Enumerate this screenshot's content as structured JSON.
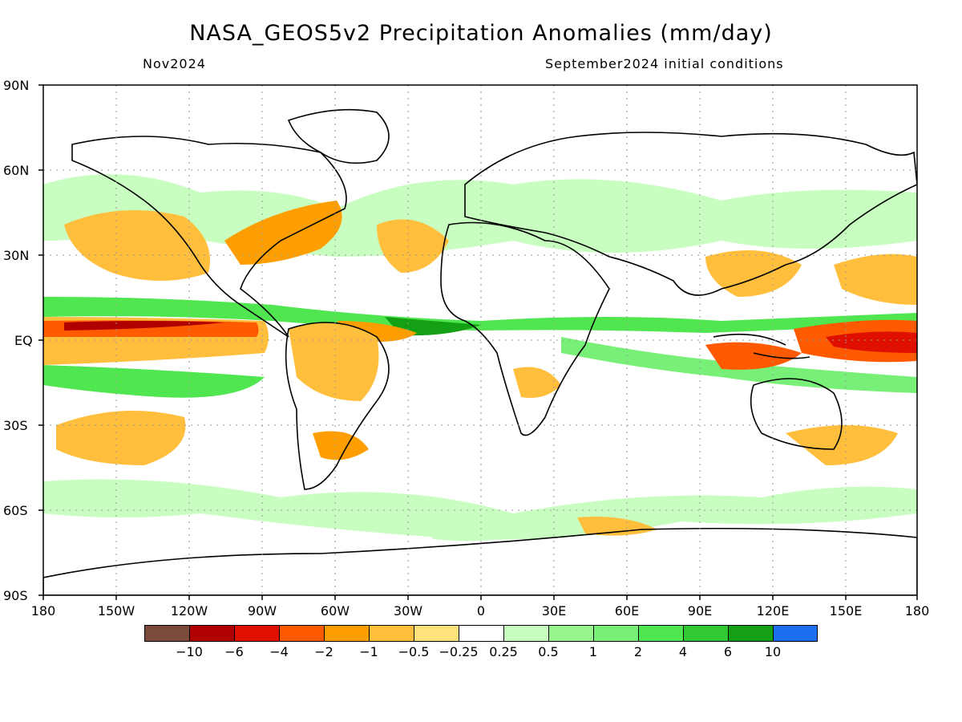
{
  "title": "NASA_GEOS5v2 Precipitation Anomalies (mm/day)",
  "subtitle_left": "Nov2024",
  "subtitle_right": "September2024 initial conditions",
  "axes": {
    "y_ticks": [
      "90N",
      "60N",
      "30N",
      "EQ",
      "30S",
      "60S",
      "90S"
    ],
    "x_ticks": [
      "180",
      "150W",
      "120W",
      "90W",
      "60W",
      "30W",
      "0",
      "30E",
      "60E",
      "90E",
      "120E",
      "150E",
      "180"
    ]
  },
  "colorbar": {
    "colors": [
      "#7a4a3a",
      "#b00000",
      "#e01000",
      "#ff5a00",
      "#ff9e00",
      "#ffbe3c",
      "#ffe27a",
      "#ffffff",
      "#c8ffc0",
      "#96f58c",
      "#78f078",
      "#50e650",
      "#32c832",
      "#14a014",
      "#1e6ef0"
    ],
    "labels": [
      "−10",
      "−6",
      "−4",
      "−2",
      "−1",
      "−0.5",
      "−0.25",
      "0.25",
      "0.5",
      "1",
      "2",
      "4",
      "6",
      "10"
    ]
  }
}
